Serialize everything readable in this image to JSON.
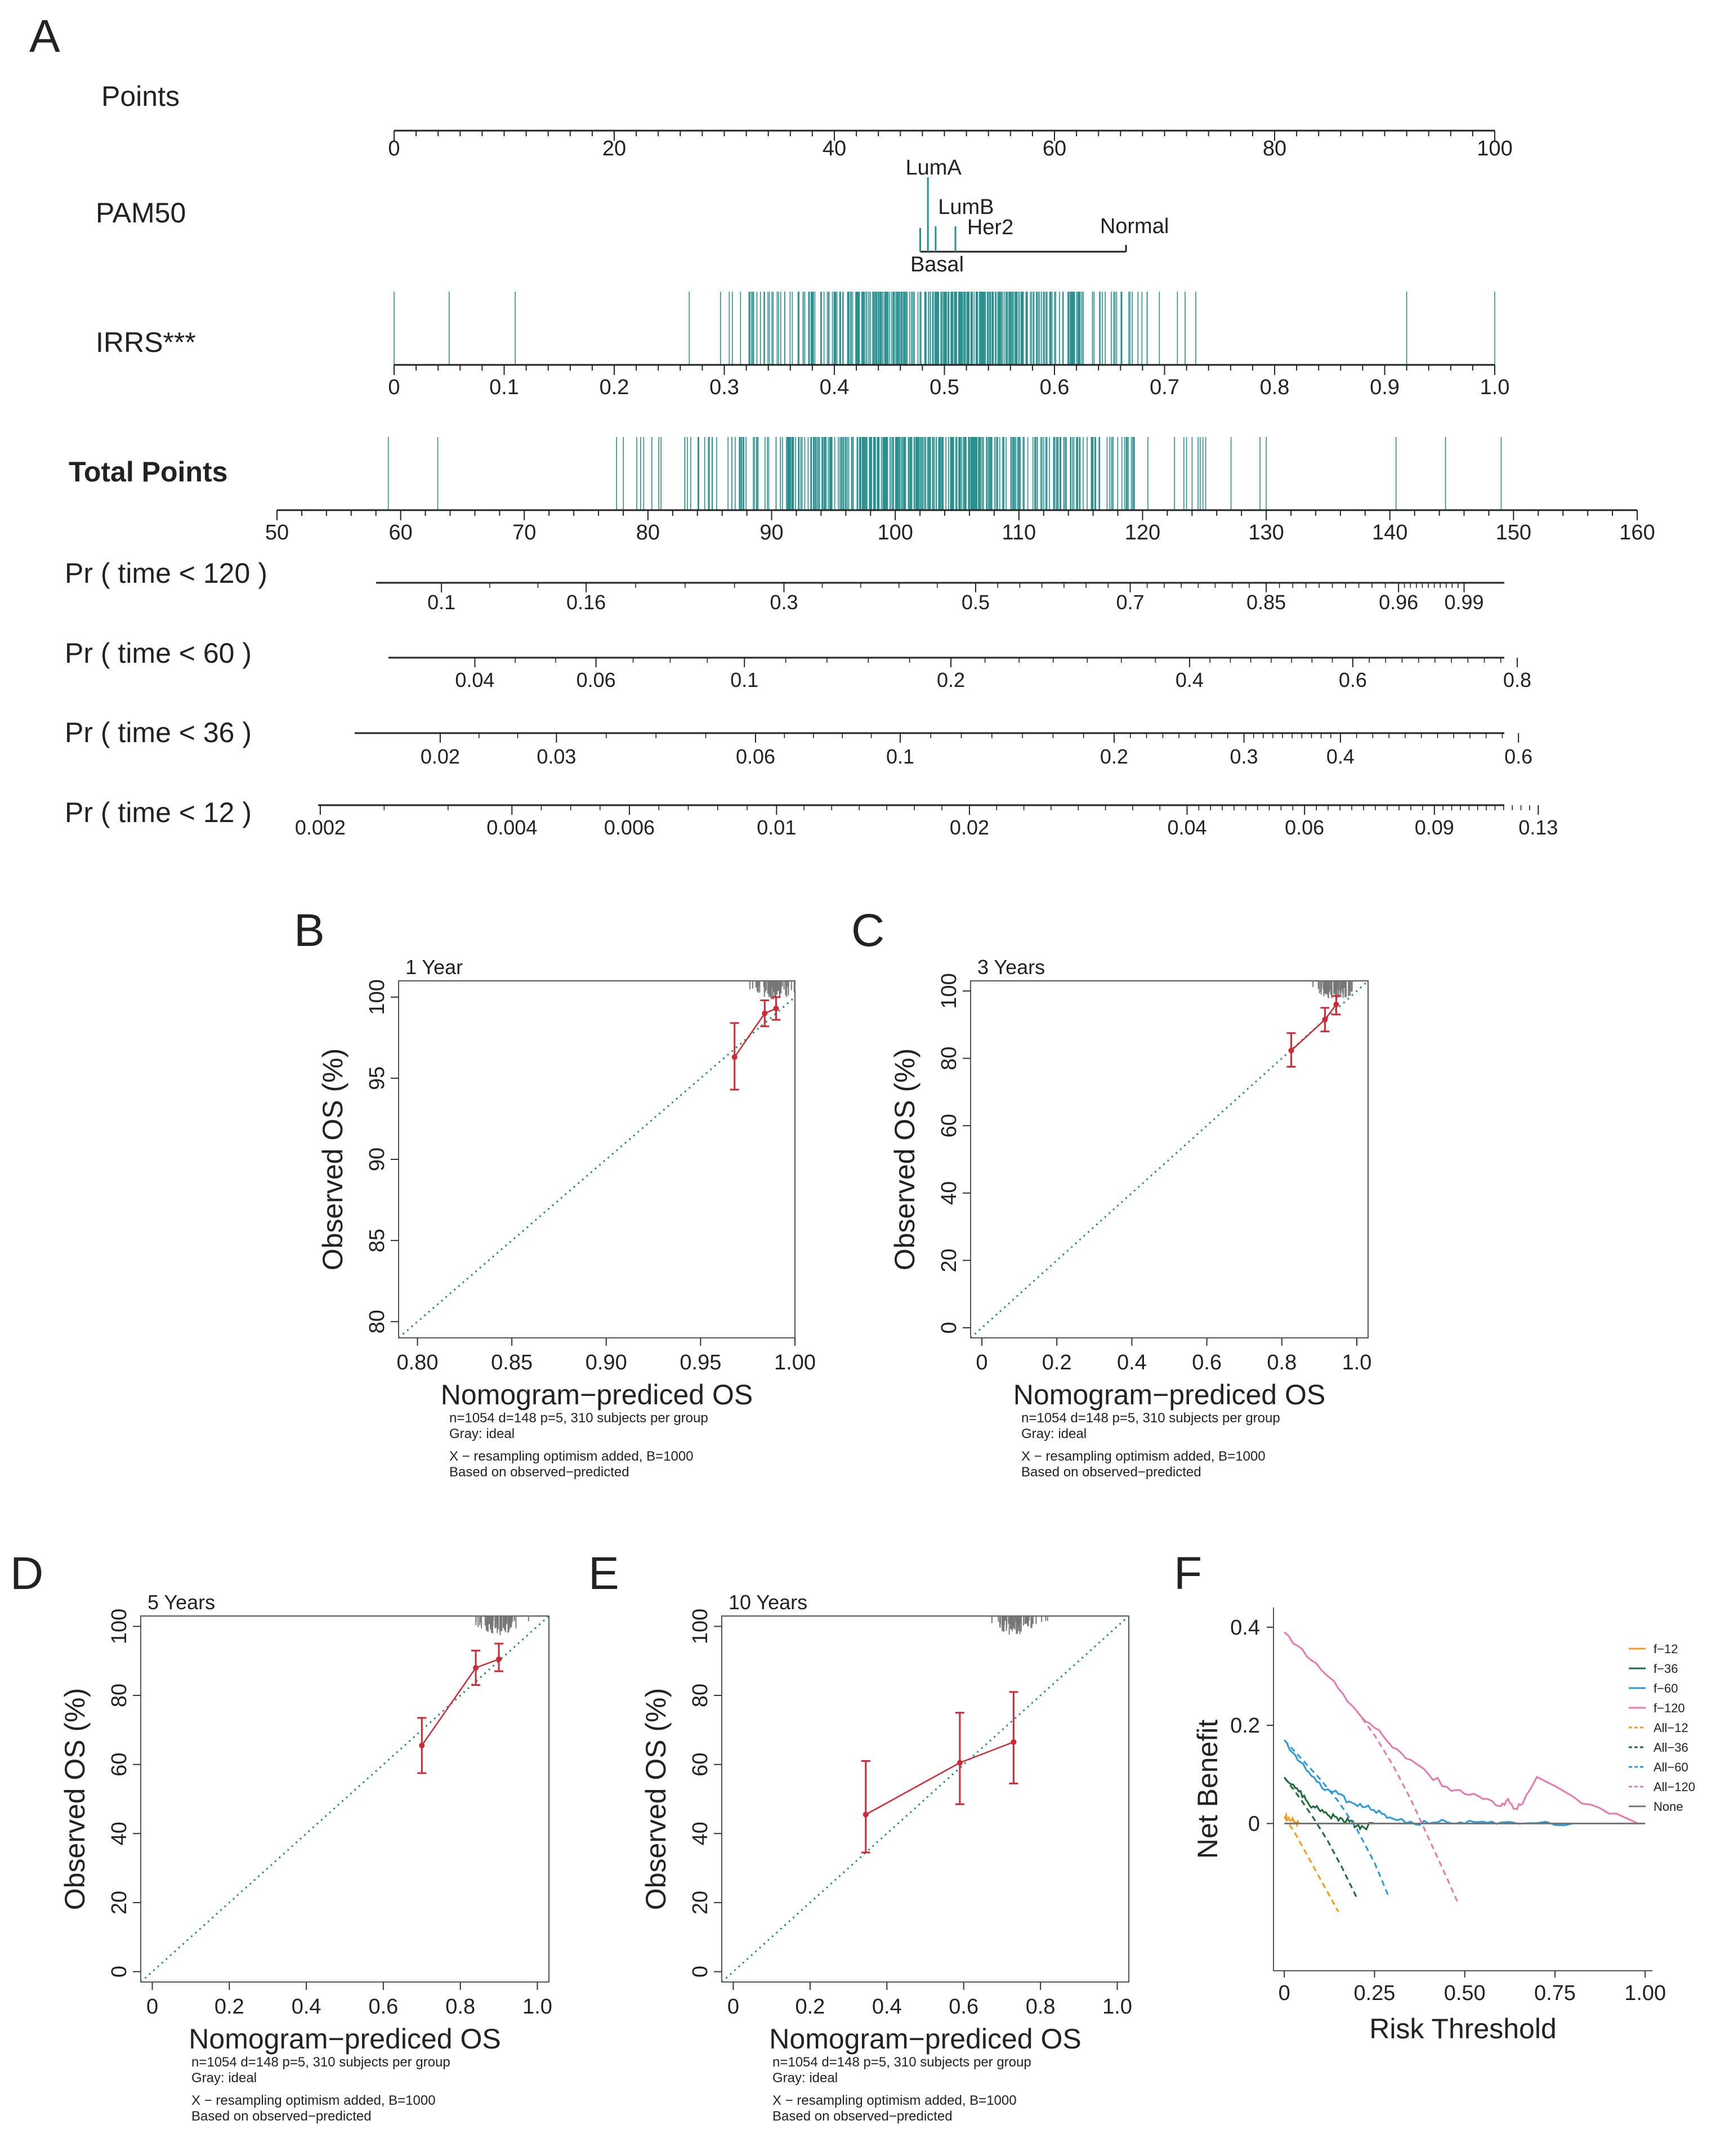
{
  "colors": {
    "teal": "#2a8f8f",
    "red": "#cc2b36",
    "gray": "#777777",
    "diag": "#2b8a78",
    "orange": "#f59a1c",
    "darkgreen": "#1d6b3a",
    "blue": "#2a9ad6",
    "pink": "#e47aac",
    "none": "#777777"
  },
  "panels": {
    "A": "A",
    "B": "B",
    "C": "C",
    "D": "D",
    "E": "E",
    "F": "F"
  },
  "nomogram": {
    "points": {
      "label": "Points",
      "ticks": [
        "0",
        "20",
        "40",
        "60",
        "80",
        "100"
      ],
      "values": [
        0,
        20,
        40,
        60,
        80,
        100
      ]
    },
    "pam50": {
      "label": "PAM50",
      "categories": [
        {
          "name": "LumA",
          "points": 48.5
        },
        {
          "name": "LumB",
          "points": 49.2
        },
        {
          "name": "Her2",
          "points": 51.0
        },
        {
          "name": "Basal",
          "points": 47.8
        },
        {
          "name": "Normal",
          "points": 66.5
        }
      ]
    },
    "irrs": {
      "label": "IRRS***",
      "ticks": [
        "0",
        "0.1",
        "0.2",
        "0.3",
        "0.4",
        "0.5",
        "0.6",
        "0.7",
        "0.8",
        "0.9",
        "1.0"
      ],
      "values": [
        0,
        0.1,
        0.2,
        0.3,
        0.4,
        0.5,
        0.6,
        0.7,
        0.8,
        0.9,
        1.0
      ]
    },
    "total_points": {
      "label": "Total Points",
      "ticks": [
        "50",
        "60",
        "70",
        "80",
        "90",
        "100",
        "110",
        "120",
        "130",
        "140",
        "150",
        "160"
      ],
      "values": [
        50,
        60,
        70,
        80,
        90,
        100,
        110,
        120,
        130,
        140,
        150,
        160
      ]
    },
    "pr120": {
      "label": "Pr ( time < 120 )",
      "ticks": [
        "0.1",
        "0.16",
        "0.3",
        "0.5",
        "0.7",
        "0.85",
        "0.96",
        "0.99"
      ],
      "total_points": [
        63.3,
        75,
        91,
        106.5,
        119,
        130,
        140.7,
        146
      ]
    },
    "pr60": {
      "label": "Pr ( time < 60 )",
      "ticks": [
        "0.04",
        "0.06",
        "0.1",
        "0.2",
        "0.4",
        "0.6",
        "0.8"
      ],
      "total_points": [
        66,
        75.8,
        87.8,
        104.5,
        123.8,
        137,
        150.3
      ]
    },
    "pr36": {
      "label": "Pr ( time < 36 )",
      "ticks": [
        "0.02",
        "0.03",
        "0.06",
        "0.1",
        "0.2",
        "0.3",
        "0.4",
        "0.6"
      ],
      "total_points": [
        63.2,
        72.6,
        88.7,
        100.4,
        117.7,
        128.2,
        136,
        150.4
      ]
    },
    "pr12": {
      "label": "Pr ( time < 12 )",
      "ticks": [
        "0.002",
        "0.004",
        "0.006",
        "0.01",
        "0.02",
        "0.04",
        "0.06",
        "0.09",
        "0.13"
      ],
      "total_points": [
        53.5,
        69,
        78.5,
        90.4,
        106,
        123.6,
        133.1,
        143.6,
        152
      ]
    }
  },
  "calibration": [
    {
      "id": "B",
      "subtitle": "1 Year",
      "xlabel": "Nomogram−prediced OS",
      "ylabel": "Observed OS (%)",
      "xlim": [
        0.79,
        1.0
      ],
      "ylim": [
        79,
        101
      ],
      "xticks": [
        "0.80",
        "0.85",
        "0.90",
        "0.95",
        "1.00"
      ],
      "xtick_values": [
        0.8,
        0.85,
        0.9,
        0.95,
        1.0
      ],
      "yticks": [
        "80",
        "85",
        "90",
        "95",
        "100"
      ],
      "ytick_values": [
        80,
        85,
        90,
        95,
        100
      ],
      "points": [
        {
          "x": 0.968,
          "y": 96.3,
          "lo": 94.3,
          "hi": 98.4
        },
        {
          "x": 0.984,
          "y": 99.0,
          "lo": 98.2,
          "hi": 99.8
        },
        {
          "x": 0.99,
          "y": 99.3,
          "lo": 98.6,
          "hi": 100
        }
      ],
      "footnote": [
        "n=1054 d=148 p=5, 310 subjects per group",
        "Gray: ideal",
        "X − resampling optimism added, B=1000",
        "Based on observed−predicted"
      ]
    },
    {
      "id": "C",
      "subtitle": "3 Years",
      "xlabel": "Nomogram−prediced OS",
      "ylabel": "Observed OS (%)",
      "xlim": [
        -0.03,
        1.03
      ],
      "ylim": [
        -3,
        103
      ],
      "xticks": [
        "0",
        "0.2",
        "0.4",
        "0.6",
        "0.8",
        "1.0"
      ],
      "xtick_values": [
        0,
        0.2,
        0.4,
        0.6,
        0.8,
        1.0
      ],
      "yticks": [
        "0",
        "20",
        "40",
        "60",
        "80",
        "100"
      ],
      "ytick_values": [
        0,
        20,
        40,
        60,
        80,
        100
      ],
      "points": [
        {
          "x": 0.825,
          "y": 82.3,
          "lo": 77.5,
          "hi": 87.5
        },
        {
          "x": 0.915,
          "y": 91.5,
          "lo": 88.0,
          "hi": 95.0
        },
        {
          "x": 0.945,
          "y": 96.0,
          "lo": 93.0,
          "hi": 98.5
        }
      ],
      "footnote": [
        "n=1054 d=148 p=5, 310 subjects per group",
        "Gray: ideal",
        "X − resampling optimism added, B=1000",
        "Based on observed−predicted"
      ]
    },
    {
      "id": "D",
      "subtitle": "5 Years",
      "xlabel": "Nomogram−prediced OS",
      "ylabel": "Observed OS (%)",
      "xlim": [
        -0.03,
        1.03
      ],
      "ylim": [
        -3,
        103
      ],
      "xticks": [
        "0",
        "0.2",
        "0.4",
        "0.6",
        "0.8",
        "1.0"
      ],
      "xtick_values": [
        0,
        0.2,
        0.4,
        0.6,
        0.8,
        1.0
      ],
      "yticks": [
        "0",
        "20",
        "40",
        "60",
        "80",
        "100"
      ],
      "ytick_values": [
        0,
        20,
        40,
        60,
        80,
        100
      ],
      "points": [
        {
          "x": 0.7,
          "y": 65.5,
          "lo": 57.5,
          "hi": 73.5
        },
        {
          "x": 0.84,
          "y": 88.0,
          "lo": 83.0,
          "hi": 93.0
        },
        {
          "x": 0.9,
          "y": 90.5,
          "lo": 87.0,
          "hi": 95.0
        }
      ],
      "footnote": [
        "n=1054 d=148 p=5, 310 subjects per group",
        "Gray: ideal",
        "X − resampling optimism added, B=1000",
        "Based on observed−predicted"
      ]
    },
    {
      "id": "E",
      "subtitle": "10 Years",
      "xlabel": "Nomogram−prediced OS",
      "ylabel": "Observed OS (%)",
      "xlim": [
        -0.03,
        1.03
      ],
      "ylim": [
        -3,
        103
      ],
      "xticks": [
        "0",
        "0.2",
        "0.4",
        "0.6",
        "0.8",
        "1.0"
      ],
      "xtick_values": [
        0,
        0.2,
        0.4,
        0.6,
        0.8,
        1.0
      ],
      "yticks": [
        "0",
        "20",
        "40",
        "60",
        "80",
        "100"
      ],
      "ytick_values": [
        0,
        20,
        40,
        60,
        80,
        100
      ],
      "points": [
        {
          "x": 0.345,
          "y": 45.5,
          "lo": 34.5,
          "hi": 61.0
        },
        {
          "x": 0.59,
          "y": 60.5,
          "lo": 48.5,
          "hi": 75.0
        },
        {
          "x": 0.73,
          "y": 66.5,
          "lo": 54.5,
          "hi": 81.0
        }
      ],
      "footnote": [
        "n=1054 d=148 p=5, 310 subjects per group",
        "Gray: ideal",
        "X − resampling optimism added, B=1000",
        "Based on observed−predicted"
      ]
    }
  ],
  "chart_data": {
    "type": "line",
    "title": "",
    "xlabel": "Risk Threshold",
    "ylabel": "Net Benefit",
    "xlim": [
      -0.03,
      1.02
    ],
    "ylim": [
      -0.3,
      0.44
    ],
    "xticks": [
      "0",
      "0.25",
      "0.50",
      "0.75",
      "1.00"
    ],
    "xtick_values": [
      0,
      0.25,
      0.5,
      0.75,
      1.0
    ],
    "yticks": [
      "0",
      "0.2",
      "0.4"
    ],
    "ytick_values": [
      0,
      0.2,
      0.4
    ],
    "legend_position": "right",
    "series": [
      {
        "name": "f−12",
        "color": "orange",
        "dash": false,
        "x": [
          0,
          0.01,
          0.02,
          0.03,
          0.04
        ],
        "y": [
          0.014,
          0.01,
          0.006,
          0.003,
          0.0
        ]
      },
      {
        "name": "f−36",
        "color": "darkgreen",
        "dash": false,
        "x": [
          0,
          0.02,
          0.04,
          0.06,
          0.08,
          0.1,
          0.12,
          0.14,
          0.16,
          0.18,
          0.2,
          0.22,
          0.25
        ],
        "y": [
          0.094,
          0.08,
          0.065,
          0.048,
          0.035,
          0.025,
          0.018,
          0.014,
          0.01,
          0.004,
          -0.005,
          -0.008,
          0.0
        ]
      },
      {
        "name": "f−60",
        "color": "blue",
        "dash": false,
        "x": [
          0,
          0.03,
          0.06,
          0.09,
          0.12,
          0.15,
          0.18,
          0.21,
          0.24,
          0.27,
          0.3,
          0.35,
          0.4,
          0.45,
          0.5,
          0.55,
          0.6,
          0.7,
          0.8
        ],
        "y": [
          0.17,
          0.14,
          0.11,
          0.085,
          0.07,
          0.06,
          0.045,
          0.04,
          0.028,
          0.02,
          0.01,
          0.004,
          0.0,
          0.003,
          0.0,
          0.004,
          0.002,
          0.001,
          0.0
        ]
      },
      {
        "name": "f−120",
        "color": "pink",
        "dash": false,
        "x": [
          0,
          0.05,
          0.1,
          0.15,
          0.2,
          0.25,
          0.3,
          0.35,
          0.4,
          0.45,
          0.5,
          0.55,
          0.6,
          0.62,
          0.64,
          0.66,
          0.7,
          0.8,
          0.9,
          0.98
        ],
        "y": [
          0.39,
          0.355,
          0.315,
          0.275,
          0.23,
          0.195,
          0.155,
          0.13,
          0.1,
          0.075,
          0.06,
          0.05,
          0.035,
          0.05,
          0.03,
          0.04,
          0.095,
          0.055,
          0.02,
          0.0
        ]
      },
      {
        "name": "All−12",
        "color": "orange",
        "dash": true,
        "x": [
          0,
          0.03,
          0.06,
          0.09,
          0.12,
          0.15
        ],
        "y": [
          0.014,
          -0.02,
          -0.06,
          -0.1,
          -0.14,
          -0.18
        ]
      },
      {
        "name": "All−36",
        "color": "darkgreen",
        "dash": true,
        "x": [
          0,
          0.04,
          0.08,
          0.12,
          0.16,
          0.2
        ],
        "y": [
          0.094,
          0.055,
          0.012,
          -0.035,
          -0.09,
          -0.15
        ]
      },
      {
        "name": "All−60",
        "color": "blue",
        "dash": true,
        "x": [
          0,
          0.05,
          0.1,
          0.15,
          0.2,
          0.25,
          0.29
        ],
        "y": [
          0.17,
          0.13,
          0.09,
          0.045,
          -0.01,
          -0.08,
          -0.15
        ]
      },
      {
        "name": "All−120",
        "color": "pink",
        "dash": true,
        "x": [
          0.2,
          0.25,
          0.3,
          0.35,
          0.4,
          0.45,
          0.48
        ],
        "y": [
          0.23,
          0.18,
          0.12,
          0.05,
          -0.03,
          -0.11,
          -0.16
        ]
      },
      {
        "name": "None",
        "color": "none",
        "dash": false,
        "x": [
          0,
          1.0
        ],
        "y": [
          0,
          0
        ]
      }
    ]
  }
}
